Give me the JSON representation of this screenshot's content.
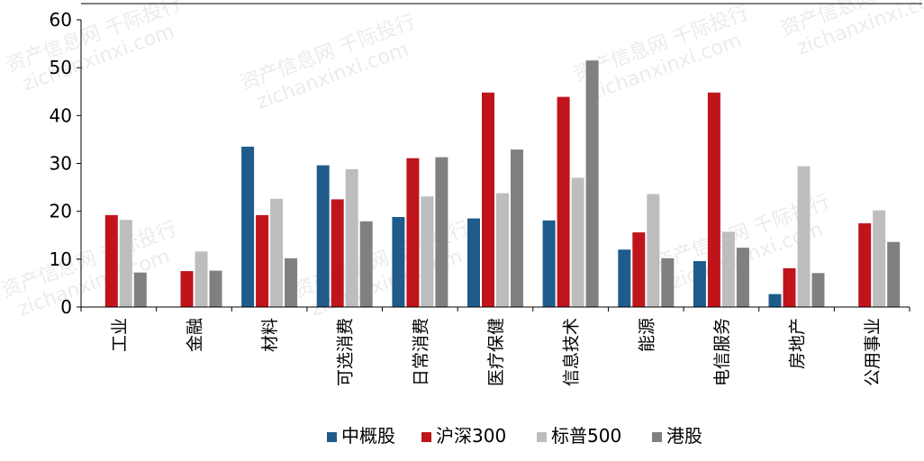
{
  "chart_data": {
    "type": "bar",
    "categories": [
      "工业",
      "金融",
      "材料",
      "可选消费",
      "日常消费",
      "医疗保健",
      "信息技术",
      "能源",
      "电信服务",
      "房地产",
      "公用事业"
    ],
    "series": [
      {
        "name": "中概股",
        "color": "#1f5c8b",
        "values": [
          null,
          null,
          33.5,
          29.6,
          18.8,
          18.5,
          18.1,
          12.0,
          9.6,
          2.7,
          null
        ]
      },
      {
        "name": "沪深300",
        "color": "#c0141c",
        "values": [
          19.2,
          7.5,
          19.2,
          22.5,
          31.1,
          44.8,
          43.9,
          15.6,
          44.8,
          8.1,
          17.5
        ]
      },
      {
        "name": "标普500",
        "color": "#bdbdbd",
        "values": [
          18.2,
          11.6,
          22.6,
          28.8,
          23.1,
          23.8,
          27.0,
          23.6,
          15.7,
          29.4,
          20.2
        ]
      },
      {
        "name": "港股",
        "color": "#808080",
        "values": [
          7.2,
          7.6,
          10.2,
          17.9,
          31.3,
          32.9,
          51.5,
          10.2,
          12.4,
          7.1,
          13.6
        ]
      }
    ],
    "ylim": [
      0,
      60
    ],
    "yticks": [
      0,
      10,
      20,
      30,
      40,
      50,
      60
    ],
    "grid": false,
    "legend_position": "bottom"
  },
  "watermarks": [
    "资产信息网 千际投行",
    "zichanxinxi.com"
  ]
}
